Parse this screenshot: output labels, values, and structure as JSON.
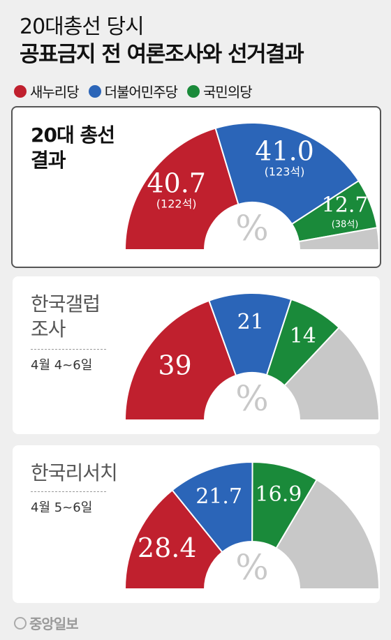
{
  "header": {
    "line1": "20대총선 당시",
    "line2": "공표금지 전 여론조사와 선거결과"
  },
  "legend": [
    {
      "label": "새누리당",
      "color": "#c0202e"
    },
    {
      "label": "더불어민주당",
      "color": "#2b65b8"
    },
    {
      "label": "국민의당",
      "color": "#1a8a3a"
    }
  ],
  "other_color": "#c8c8c8",
  "footer": {
    "source": "중앙일보"
  },
  "panels": [
    {
      "label_line1": "20대 총선",
      "label_line2": "결과",
      "date": ""
    },
    {
      "label_line1": "한국갤럽",
      "label_line2": "조사",
      "date": "4월 4~6일"
    },
    {
      "label_line1": "한국리서치",
      "label_line2": "",
      "date": "4월 5~6일"
    }
  ],
  "chart_data": [
    {
      "type": "pie",
      "name": "20대 총선 결과",
      "center_label": "%",
      "slices": [
        {
          "party": "새누리당",
          "value": 40.7,
          "label": "40.7",
          "sublabel": "(122석)"
        },
        {
          "party": "더불어민주당",
          "value": 41.0,
          "label": "41.0",
          "sublabel": "(123석)"
        },
        {
          "party": "국민의당",
          "value": 12.7,
          "label": "12.7",
          "sublabel": "(38석)"
        },
        {
          "party": "기타",
          "value": 5.6,
          "label": "",
          "sublabel": ""
        }
      ]
    },
    {
      "type": "pie",
      "name": "한국갤럽 조사",
      "center_label": "%",
      "slices": [
        {
          "party": "새누리당",
          "value": 39,
          "label": "39",
          "sublabel": ""
        },
        {
          "party": "더불어민주당",
          "value": 21,
          "label": "21",
          "sublabel": ""
        },
        {
          "party": "국민의당",
          "value": 14,
          "label": "14",
          "sublabel": ""
        },
        {
          "party": "기타",
          "value": 26,
          "label": "",
          "sublabel": ""
        }
      ]
    },
    {
      "type": "pie",
      "name": "한국리서치 조사",
      "center_label": "%",
      "slices": [
        {
          "party": "새누리당",
          "value": 28.4,
          "label": "28.4",
          "sublabel": ""
        },
        {
          "party": "더불어민주당",
          "value": 21.7,
          "label": "21.7",
          "sublabel": ""
        },
        {
          "party": "국민의당",
          "value": 16.9,
          "label": "16.9",
          "sublabel": ""
        },
        {
          "party": "기타",
          "value": 33.0,
          "label": "",
          "sublabel": ""
        }
      ]
    }
  ]
}
